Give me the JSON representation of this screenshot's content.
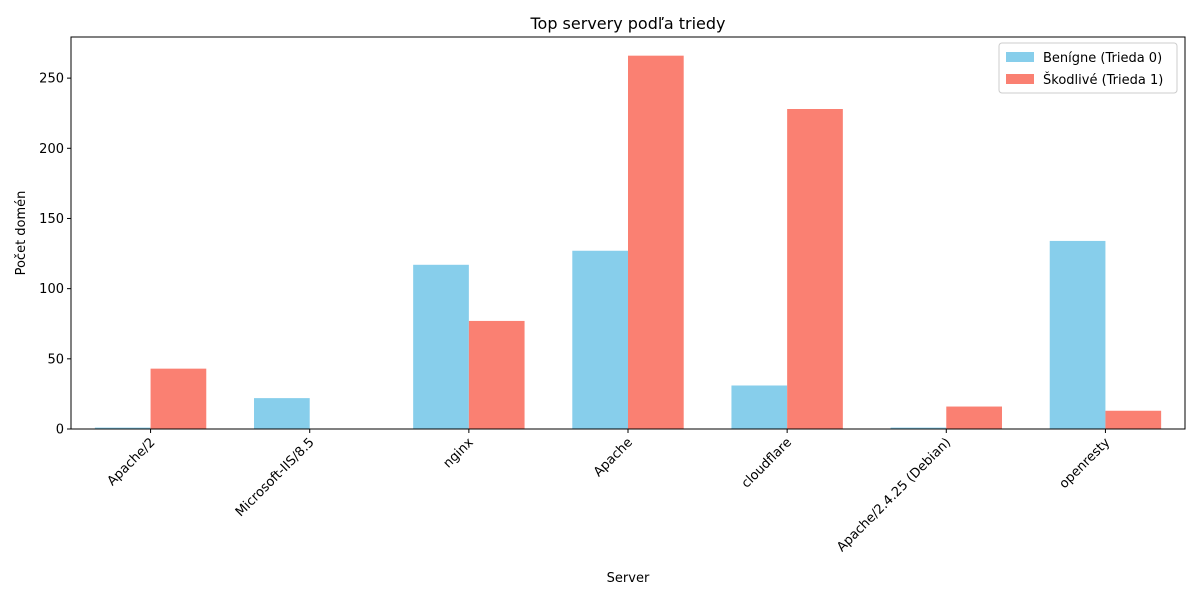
{
  "chart_data": {
    "type": "bar",
    "title": "Top servery podľa triedy",
    "xlabel": "Server",
    "ylabel": "Počet domén",
    "categories": [
      "Apache/2",
      "Microsoft-IIS/8.5",
      "nginx",
      "Apache",
      "cloudflare",
      "Apache/2.4.25 (Debian)",
      "openresty"
    ],
    "series": [
      {
        "name": "Benígne (Trieda 0)",
        "color": "#87CEEB",
        "values": [
          1,
          22,
          117,
          127,
          31,
          1,
          134
        ]
      },
      {
        "name": "Škodlivé (Trieda 1)",
        "color": "#FA8072",
        "values": [
          43,
          0,
          77,
          266,
          228,
          16,
          13
        ]
      }
    ],
    "ylim": [
      0,
      279.3
    ],
    "yticks": [
      0,
      50,
      100,
      150,
      200,
      250
    ],
    "grid": false,
    "legend_position": "top-right"
  }
}
